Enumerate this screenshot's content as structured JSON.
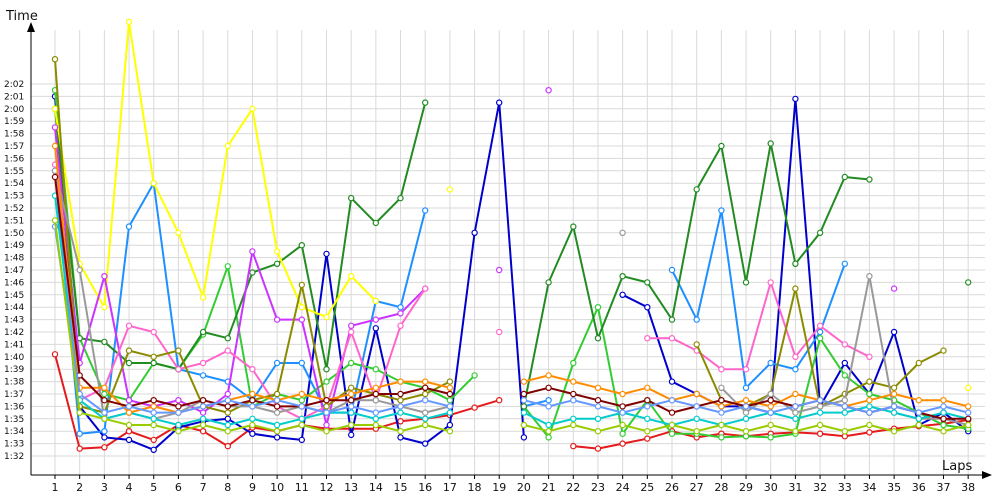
{
  "chart_data": {
    "type": "line",
    "xlabel": "Laps",
    "ylabel": "Time",
    "x": [
      1,
      2,
      3,
      4,
      5,
      6,
      7,
      8,
      9,
      10,
      11,
      12,
      13,
      14,
      15,
      16,
      17,
      18,
      19,
      20,
      21,
      22,
      23,
      24,
      25,
      26,
      27,
      28,
      29,
      30,
      31,
      32,
      33,
      34,
      35,
      36,
      37,
      38
    ],
    "y_ticks": [
      "1:32",
      "1:33",
      "1:34",
      "1:35",
      "1:36",
      "1:37",
      "1:38",
      "1:39",
      "1:40",
      "1:41",
      "1:42",
      "1:43",
      "1:44",
      "1:45",
      "1:46",
      "1:47",
      "1:48",
      "1:49",
      "1:50",
      "1:51",
      "1:52",
      "1:53",
      "1:54",
      "1:55",
      "1:56",
      "1:57",
      "1:58",
      "1:59",
      "2:00",
      "2:01",
      "2:02"
    ],
    "ylim": [
      92,
      122
    ],
    "grid": true,
    "series": [
      {
        "color": "#e41a1c",
        "values": [
          100.2,
          92.6,
          92.7,
          94.0,
          93.3,
          94.5,
          94.0,
          92.8,
          94.3,
          94.0,
          94.5,
          94.2,
          94.2,
          94.2,
          94.8,
          95.0,
          95.3,
          95.9,
          96.5,
          null,
          null,
          92.8,
          92.6,
          93.0,
          93.4,
          94.0,
          93.5,
          93.8,
          93.6,
          93.8,
          93.9,
          93.8,
          93.6,
          93.9,
          94.2,
          94.4,
          94.6,
          94.9
        ]
      },
      {
        "color": "#0000cc",
        "values": [
          121.0,
          96.0,
          93.5,
          93.3,
          92.5,
          94.3,
          94.8,
          95.0,
          93.8,
          93.5,
          93.3,
          108.3,
          93.7,
          102.3,
          93.5,
          93.0,
          94.5,
          110.0,
          120.5,
          93.5,
          null,
          null,
          null,
          105.0,
          104.0,
          98.0,
          97.0,
          96.0,
          96.0,
          95.5,
          120.8,
          96.0,
          99.5,
          97.0,
          102.0,
          94.5,
          95.5,
          94.0
        ]
      },
      {
        "color": "#1e90ff",
        "values": [
          115.0,
          93.8,
          94.0,
          110.5,
          114.0,
          99.0,
          98.5,
          98.0,
          96.5,
          99.5,
          99.5,
          95.5,
          95.5,
          104.5,
          104.0,
          111.8,
          null,
          null,
          null,
          96.0,
          96.5,
          null,
          null,
          null,
          null,
          107.0,
          103.0,
          111.8,
          97.5,
          99.5,
          99.0,
          102.0,
          107.5,
          null,
          null,
          null,
          null,
          null
        ]
      },
      {
        "color": "#33cc33",
        "values": [
          121.5,
          101.5,
          97.0,
          96.5,
          99.5,
          99.0,
          101.8,
          107.3,
          96.0,
          97.0,
          96.5,
          98.0,
          99.5,
          99.0,
          98.0,
          97.5,
          96.5,
          98.5,
          null,
          96.0,
          93.5,
          99.5,
          104.0,
          93.8,
          96.5,
          93.8,
          93.8,
          93.5,
          93.6,
          93.5,
          93.8,
          101.5,
          98.5,
          97.0,
          96.5,
          95.5,
          94.5,
          94.2
        ]
      },
      {
        "color": "#228b22",
        "values": [
          120.0,
          101.5,
          101.2,
          99.5,
          99.5,
          99.0,
          102.0,
          101.5,
          106.8,
          107.5,
          109.0,
          99.0,
          112.8,
          110.8,
          112.8,
          120.5,
          null,
          null,
          null,
          96.0,
          106.0,
          110.5,
          101.5,
          106.5,
          106.0,
          103.0,
          113.5,
          117.0,
          106.0,
          117.2,
          107.5,
          110.0,
          114.5,
          114.3,
          null,
          null,
          null,
          106.0
        ]
      },
      {
        "color": "#ffff00",
        "values": [
          120.0,
          107.5,
          104.0,
          127.0,
          114.0,
          110.0,
          104.8,
          117.0,
          120.0,
          108.5,
          104.0,
          103.2,
          106.5,
          104.5,
          null,
          null,
          113.5,
          null,
          null,
          null,
          null,
          null,
          null,
          null,
          null,
          null,
          null,
          null,
          null,
          null,
          null,
          null,
          null,
          null,
          null,
          null,
          null,
          97.5
        ]
      },
      {
        "color": "#cc33ff",
        "values": [
          118.5,
          99.5,
          106.5,
          96.5,
          96.0,
          96.5,
          95.5,
          97.0,
          108.5,
          103.0,
          103.0,
          94.5,
          102.5,
          103.0,
          103.5,
          105.5,
          null,
          null,
          107.0,
          null,
          121.5,
          null,
          null,
          null,
          null,
          null,
          null,
          null,
          null,
          null,
          null,
          null,
          null,
          null,
          105.5,
          null,
          null,
          null
        ]
      },
      {
        "color": "#ff66cc",
        "values": [
          115.5,
          96.5,
          97.5,
          102.5,
          102.0,
          99.0,
          99.5,
          100.5,
          99.0,
          96.0,
          95.0,
          96.0,
          102.0,
          96.5,
          102.5,
          105.5,
          null,
          null,
          102.0,
          null,
          null,
          null,
          null,
          null,
          101.5,
          101.5,
          100.5,
          99.0,
          99.0,
          106.0,
          100.0,
          102.5,
          101.0,
          100.0,
          null,
          null,
          null,
          null
        ]
      },
      {
        "color": "#8b8b00",
        "values": [
          124.0,
          96.0,
          95.5,
          100.5,
          100.0,
          100.5,
          96.0,
          95.5,
          96.5,
          97.0,
          105.8,
          96.0,
          97.5,
          97.0,
          96.5,
          97.0,
          98.0,
          null,
          null,
          null,
          null,
          null,
          null,
          null,
          null,
          null,
          101.0,
          96.5,
          96.0,
          97.0,
          105.5,
          96.0,
          97.0,
          98.0,
          97.5,
          99.5,
          100.5,
          null
        ]
      },
      {
        "color": "#999999",
        "values": [
          115.0,
          107.0,
          95.0,
          95.5,
          95.0,
          95.5,
          96.5,
          96.0,
          96.0,
          95.5,
          96.0,
          95.5,
          96.5,
          96.5,
          96.0,
          95.5,
          96.0,
          null,
          null,
          null,
          null,
          null,
          null,
          110.0,
          null,
          null,
          null,
          97.5,
          95.5,
          97.0,
          95.5,
          96.0,
          96.5,
          106.5,
          95.5,
          95.0,
          95.0,
          94.5
        ]
      },
      {
        "color": "#00cccc",
        "values": [
          113.0,
          96.5,
          95.0,
          95.5,
          95.0,
          94.5,
          95.0,
          94.5,
          95.0,
          94.5,
          95.0,
          95.5,
          95.5,
          95.0,
          95.5,
          95.0,
          95.5,
          null,
          null,
          95.5,
          94.5,
          95.0,
          95.0,
          95.5,
          95.0,
          94.5,
          95.0,
          94.5,
          95.0,
          95.5,
          95.0,
          95.5,
          95.5,
          96.0,
          95.5,
          95.0,
          95.5,
          95.0
        ]
      },
      {
        "color": "#ff8c00",
        "values": [
          117.0,
          97.5,
          97.5,
          95.5,
          96.0,
          95.5,
          96.0,
          96.5,
          97.0,
          96.5,
          97.0,
          96.5,
          97.0,
          97.5,
          98.0,
          98.0,
          97.5,
          null,
          null,
          98.0,
          98.5,
          98.0,
          97.5,
          97.0,
          97.5,
          96.5,
          97.0,
          96.0,
          96.5,
          96.0,
          97.0,
          96.5,
          96.0,
          96.5,
          97.0,
          96.5,
          96.5,
          96.0
        ]
      },
      {
        "color": "#800000",
        "values": [
          114.5,
          98.5,
          96.5,
          96.0,
          96.5,
          96.0,
          96.5,
          96.0,
          96.5,
          96.0,
          96.0,
          96.5,
          96.5,
          97.0,
          97.0,
          97.5,
          97.0,
          null,
          null,
          97.0,
          97.5,
          97.0,
          96.5,
          96.0,
          96.5,
          95.5,
          96.0,
          96.5,
          96.0,
          96.5,
          96.0,
          96.5,
          96.0,
          95.5,
          96.0,
          95.5,
          95.0,
          95.0
        ]
      },
      {
        "color": "#6699ff",
        "values": [
          110.5,
          97.0,
          95.5,
          96.0,
          95.5,
          95.5,
          96.0,
          96.5,
          96.0,
          96.5,
          96.0,
          95.5,
          96.0,
          95.5,
          96.0,
          96.5,
          96.0,
          null,
          null,
          96.5,
          96.0,
          96.5,
          96.0,
          95.5,
          96.0,
          96.5,
          96.0,
          95.5,
          96.0,
          95.5,
          96.0,
          96.5,
          96.0,
          95.5,
          96.0,
          95.5,
          96.0,
          95.5
        ]
      },
      {
        "color": "#99cc00",
        "values": [
          111.0,
          95.5,
          95.0,
          94.5,
          94.5,
          94.0,
          94.5,
          94.0,
          94.5,
          94.0,
          94.5,
          94.0,
          94.5,
          94.5,
          94.0,
          94.5,
          94.0,
          null,
          null,
          94.5,
          94.0,
          94.5,
          94.0,
          94.5,
          94.0,
          94.5,
          94.0,
          94.5,
          94.0,
          94.5,
          94.0,
          94.5,
          94.0,
          94.5,
          94.0,
          94.5,
          94.0,
          94.5
        ]
      }
    ]
  }
}
